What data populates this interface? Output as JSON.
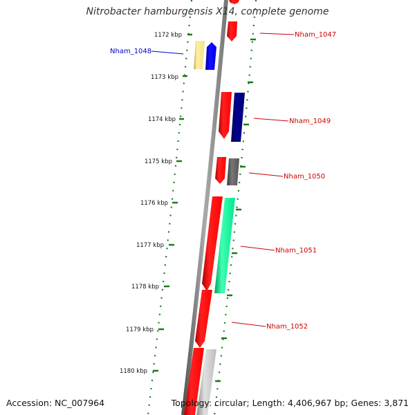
{
  "title": "Nitrobacter hamburgensis X14, complete genome",
  "accession": "Accession: NC_007964",
  "topology": "Topology: circular; Length: 4,406,967 bp; Genes: 3,871",
  "scale_labels": [
    "1172 kbp",
    "1173 kbp",
    "1174 kbp",
    "1175 kbp",
    "1176 kbp",
    "1177 kbp",
    "1178 kbp",
    "1179 kbp",
    "1180 kbp"
  ],
  "gene_labels": [
    {
      "text": "Nham_1047",
      "color": "#cc0000"
    },
    {
      "text": "Nham_1048",
      "color": "#0000cc"
    },
    {
      "text": "Nham_1049",
      "color": "#cc0000"
    },
    {
      "text": "Nham_1050",
      "color": "#cc0000"
    },
    {
      "text": "Nham_1051",
      "color": "#cc0000"
    },
    {
      "text": "Nham_1052",
      "color": "#cc0000"
    }
  ],
  "colors": {
    "backbone": "#888888",
    "scale_ticks": "#1a7a1a",
    "forward_cds": "#ff0000",
    "blue_gene": "#0000ff",
    "navy_gene": "#000080",
    "yellow_gene": "#f0e090",
    "gray_gene": "#666666",
    "green_gene": "#00e890",
    "silver_gene": "#c0c0c0"
  }
}
